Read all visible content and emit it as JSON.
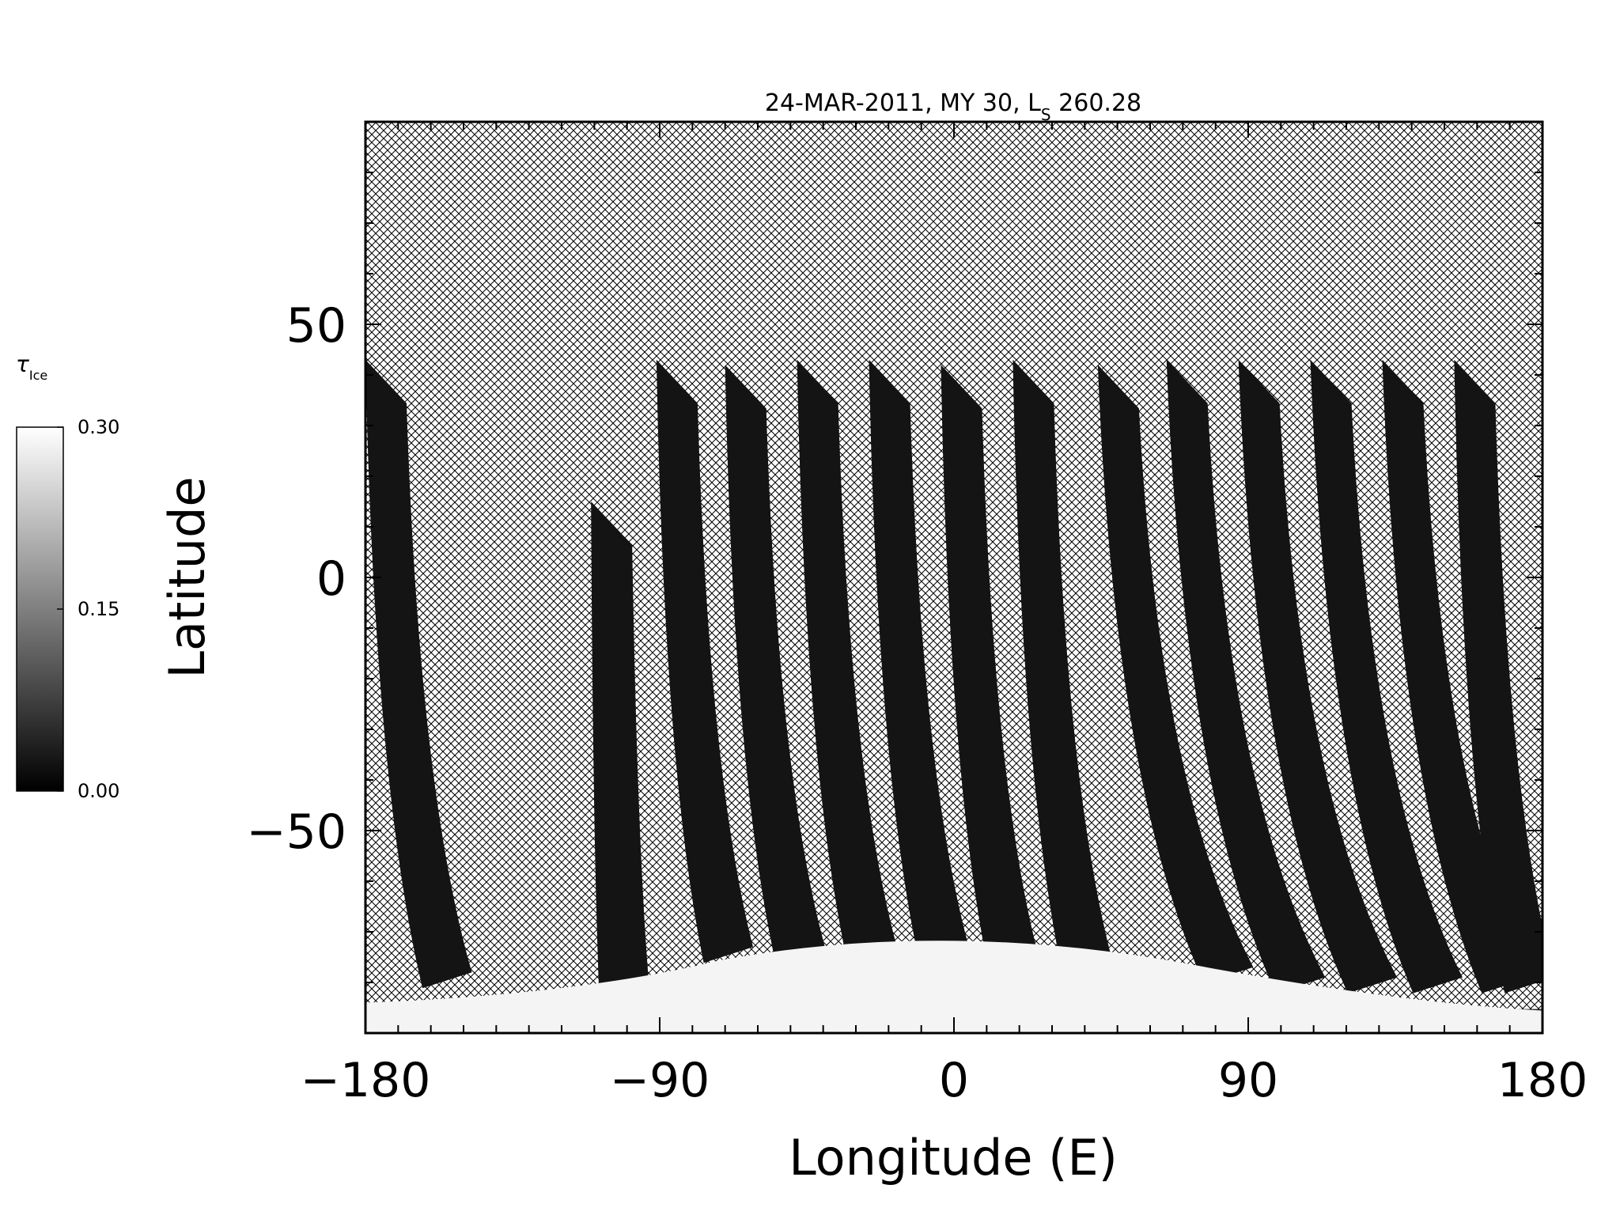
{
  "chart_data": {
    "type": "heatmap",
    "title": {
      "date": "24-MAR-2011",
      "mars_year": "MY 30",
      "ls_symbol": "L",
      "ls_subscript": "S",
      "ls_value": "260.28"
    },
    "xlabel": "Longitude (E)",
    "ylabel": "Latitude",
    "xlim": [
      -180,
      180
    ],
    "ylim": [
      -90,
      90
    ],
    "x_ticks": [
      -180,
      -90,
      0,
      90,
      180
    ],
    "x_tick_labels": [
      "−180",
      "−90",
      "0",
      "90",
      "180"
    ],
    "y_ticks": [
      -50,
      0,
      50
    ],
    "y_tick_labels": [
      "−50",
      "0",
      "50"
    ],
    "grid": false,
    "no_data_fill": "crosshatch",
    "colorbar": {
      "label_symbol": "τ",
      "label_subscript": "Ice",
      "range": [
        0.0,
        0.3
      ],
      "ticks": [
        0.0,
        0.15,
        0.3
      ],
      "tick_labels": [
        "0.00",
        "0.15",
        "0.30"
      ],
      "colors": [
        "#000000",
        "#ffffff"
      ],
      "placement": "left"
    },
    "swaths": [
      {
        "lon_top": -180,
        "lat_top": 43,
        "lon_bottom": -155,
        "lat_bottom": -78
      },
      {
        "lon_top": -111,
        "lat_top": 15,
        "lon_bottom": -101,
        "lat_bottom": -79
      },
      {
        "lon_top": -91,
        "lat_top": 43,
        "lon_bottom": -69,
        "lat_bottom": -73
      },
      {
        "lon_top": -70,
        "lat_top": 42,
        "lon_bottom": -47,
        "lat_bottom": -73
      },
      {
        "lon_top": -48,
        "lat_top": 43,
        "lon_bottom": -25,
        "lat_bottom": -73
      },
      {
        "lon_top": -26,
        "lat_top": 43,
        "lon_bottom": -3,
        "lat_bottom": -73
      },
      {
        "lon_top": -4,
        "lat_top": 42,
        "lon_bottom": 18,
        "lat_bottom": -74
      },
      {
        "lon_top": 18,
        "lat_top": 43,
        "lon_bottom": 41,
        "lat_bottom": -76
      },
      {
        "lon_top": 44,
        "lat_top": 42,
        "lon_bottom": 84,
        "lat_bottom": -77
      },
      {
        "lon_top": 65,
        "lat_top": 43,
        "lon_bottom": 106,
        "lat_bottom": -79
      },
      {
        "lon_top": 87,
        "lat_top": 43,
        "lon_bottom": 128,
        "lat_bottom": -79
      },
      {
        "lon_top": 109,
        "lat_top": 43,
        "lon_bottom": 148,
        "lat_bottom": -79
      },
      {
        "lon_top": 131,
        "lat_top": 43,
        "lon_bottom": 169,
        "lat_bottom": -79
      },
      {
        "lon_top": 153,
        "lat_top": 43,
        "lon_bottom": 176,
        "lat_bottom": -79
      }
    ],
    "polar_cap": {
      "region": "southern",
      "lat_boundary_edge": -84,
      "lat_boundary_center": -71,
      "value": 0.3
    }
  }
}
